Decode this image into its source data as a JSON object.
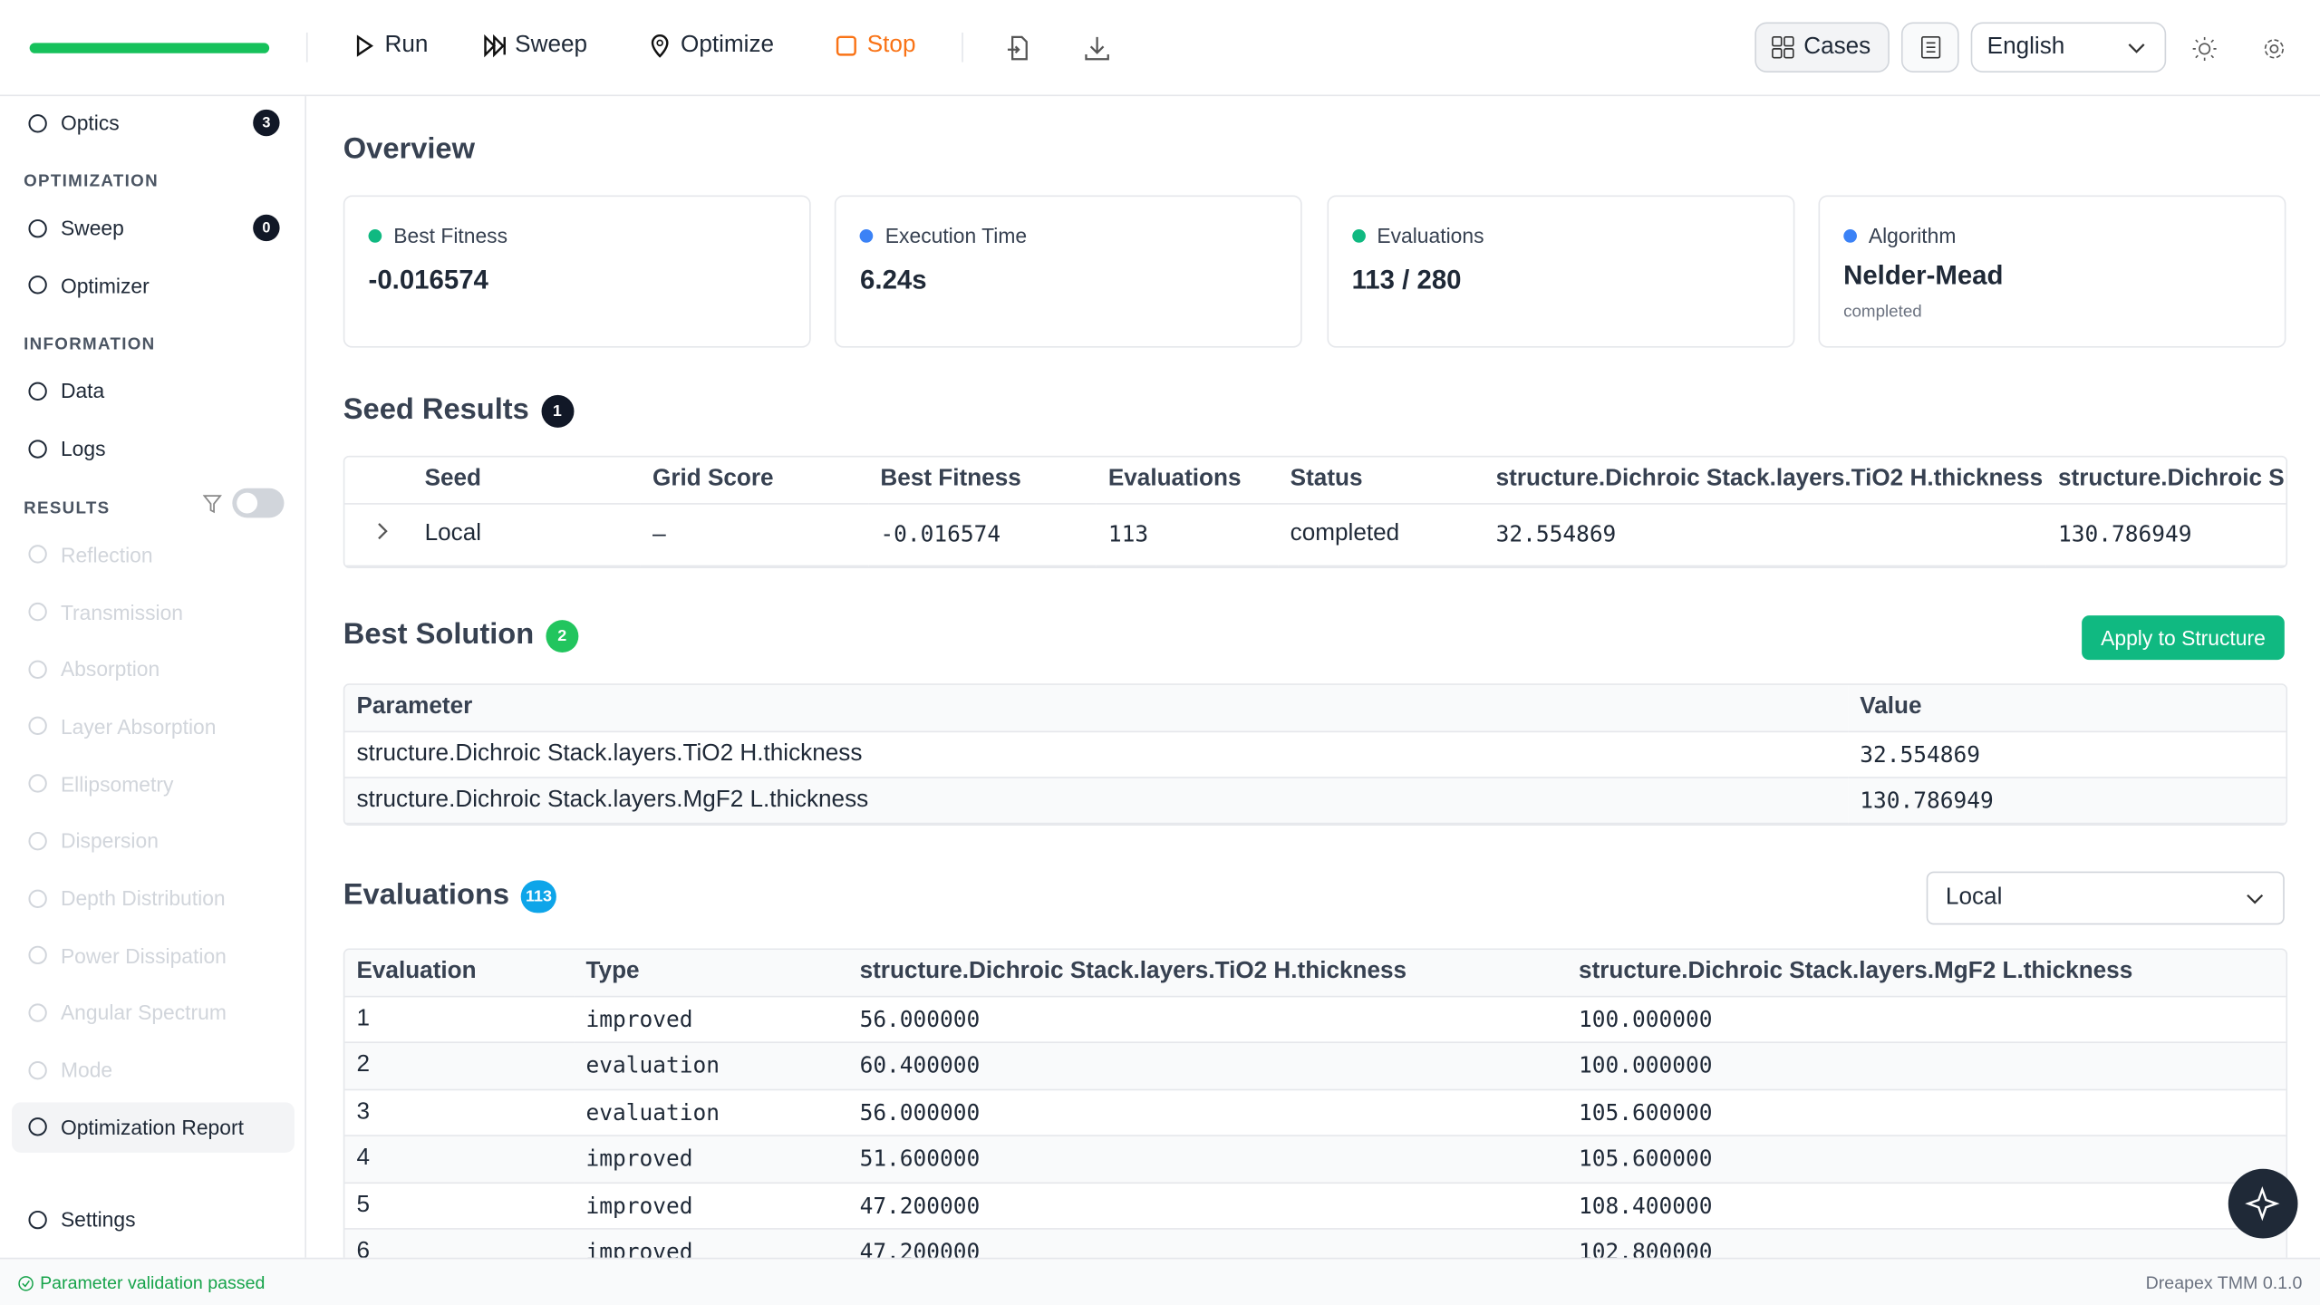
{
  "toolbar": {
    "run": "Run",
    "sweep": "Sweep",
    "optimize": "Optimize",
    "stop": "Stop",
    "cases": "Cases",
    "language": "English"
  },
  "sidebar": {
    "top": [
      {
        "label": "Optics",
        "badge": 3
      }
    ],
    "groups": [
      {
        "heading": "OPTIMIZATION",
        "items": [
          {
            "label": "Sweep",
            "badge": 0
          },
          {
            "label": "Optimizer"
          }
        ]
      },
      {
        "heading": "INFORMATION",
        "items": [
          {
            "label": "Data"
          },
          {
            "label": "Logs"
          }
        ]
      },
      {
        "heading": "RESULTS",
        "items": [
          {
            "label": "Reflection"
          },
          {
            "label": "Transmission"
          },
          {
            "label": "Absorption"
          },
          {
            "label": "Layer Absorption"
          },
          {
            "label": "Ellipsometry"
          },
          {
            "label": "Dispersion"
          },
          {
            "label": "Depth Distribution"
          },
          {
            "label": "Power Dissipation"
          },
          {
            "label": "Angular Spectrum"
          },
          {
            "label": "Mode"
          },
          {
            "label": "Optimization Report"
          }
        ]
      }
    ],
    "settings": "Settings"
  },
  "overview": {
    "title": "Overview",
    "cards": [
      {
        "label": "Best Fitness",
        "value": "-0.016574",
        "color": "#10b981"
      },
      {
        "label": "Execution Time",
        "value": "6.24s",
        "color": "#3b82f6"
      },
      {
        "label": "Evaluations",
        "value": "113 / 280",
        "color": "#10b981"
      },
      {
        "label": "Algorithm",
        "value": "Nelder-Mead",
        "note": "completed",
        "color": "#3b82f6"
      }
    ]
  },
  "seed_results": {
    "title": "Seed Results",
    "badge": 1,
    "headers": [
      "Seed",
      "Grid Score",
      "Best Fitness",
      "Evaluations",
      "Status",
      "structure.Dichroic Stack.layers.TiO2 H.thickness",
      "structure.Dichroic S"
    ],
    "rows": [
      [
        "Local",
        "–",
        "-0.016574",
        "113",
        "completed",
        "32.554869",
        "130.786949"
      ]
    ]
  },
  "best_solution": {
    "title": "Best Solution",
    "badge": 2,
    "button": "Apply to Structure",
    "headers": [
      "Parameter",
      "Value"
    ],
    "rows": [
      [
        "structure.Dichroic Stack.layers.TiO2 H.thickness",
        "32.554869"
      ],
      [
        "structure.Dichroic Stack.layers.MgF2 L.thickness",
        "130.786949"
      ]
    ]
  },
  "evaluations": {
    "title": "Evaluations",
    "badge": 113,
    "select": "Local",
    "headers": [
      "Evaluation",
      "Type",
      "structure.Dichroic Stack.layers.TiO2 H.thickness",
      "structure.Dichroic Stack.layers.MgF2 L.thickness"
    ],
    "rows": [
      [
        "1",
        "improved",
        "56.000000",
        "100.000000"
      ],
      [
        "2",
        "evaluation",
        "60.400000",
        "100.000000"
      ],
      [
        "3",
        "evaluation",
        "56.000000",
        "105.600000"
      ],
      [
        "4",
        "improved",
        "51.600000",
        "105.600000"
      ],
      [
        "5",
        "improved",
        "47.200000",
        "108.400000"
      ],
      [
        "6",
        "improved",
        "47.200000",
        "102.800000"
      ]
    ]
  },
  "status": {
    "message": "Parameter validation passed",
    "version": "Dreapex TMM 0.1.0"
  }
}
